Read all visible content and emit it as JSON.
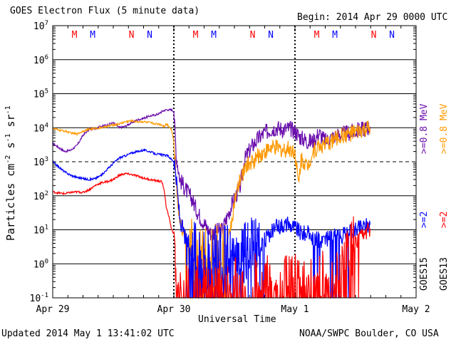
{
  "header": {
    "title": "GOES Electron Flux (5 minute data)",
    "begin": "Begin: 2014 Apr 29 0000 UTC"
  },
  "footer": {
    "updated": "Updated 2014 May  1 13:41:02 UTC",
    "credit": "NOAA/SWPC Boulder, CO USA"
  },
  "legend": {
    "goes15_label": "GOES15",
    "goes13_label": "GOES13",
    "goes15_08": ">=0.8 MeV",
    "goes13_08": ">=0.8 MeV",
    "goes15_2": ">=2",
    "goes13_2": ">=2"
  },
  "colors": {
    "goes15_08": "#6a0dad",
    "goes13_08": "#ff9900",
    "goes15_2": "#0000ff",
    "goes13_2": "#ff0000"
  },
  "chart_data": {
    "type": "line",
    "title": "GOES Electron Flux (5 minute data)",
    "xlabel": "Universal Time",
    "ylabel": "Particles cm-2 s-1 sr-1",
    "yscale": "log",
    "ylim": [
      0.1,
      10000000
    ],
    "xlim_days": [
      0,
      3
    ],
    "x_tick_labels": [
      "Apr 29",
      "Apr 30",
      "May 1",
      "May 2"
    ],
    "y_tick_labels": [
      "10-1",
      "100",
      "101",
      "102",
      "103",
      "104",
      "105",
      "106",
      "107"
    ],
    "threshold_line": 1000,
    "day_separators_days": [
      1,
      2
    ],
    "magnetopause_markers": [
      {
        "label": "M",
        "day": 0.18,
        "color": "#ff0000"
      },
      {
        "label": "M",
        "day": 0.33,
        "color": "#0000ff"
      },
      {
        "label": "N",
        "day": 0.65,
        "color": "#ff0000"
      },
      {
        "label": "N",
        "day": 0.8,
        "color": "#0000ff"
      },
      {
        "label": "M",
        "day": 1.18,
        "color": "#ff0000"
      },
      {
        "label": "M",
        "day": 1.33,
        "color": "#0000ff"
      },
      {
        "label": "N",
        "day": 1.65,
        "color": "#ff0000"
      },
      {
        "label": "N",
        "day": 1.8,
        "color": "#0000ff"
      },
      {
        "label": "M",
        "day": 2.18,
        "color": "#ff0000"
      },
      {
        "label": "M",
        "day": 2.33,
        "color": "#0000ff"
      },
      {
        "label": "N",
        "day": 2.65,
        "color": "#ff0000"
      },
      {
        "label": "N",
        "day": 2.8,
        "color": "#0000ff"
      }
    ],
    "series": [
      {
        "name": "GOES15 >=0.8 MeV",
        "color": "#6a0dad",
        "noise_after_day": 1.0,
        "x": [
          0.0,
          0.05,
          0.1,
          0.15,
          0.2,
          0.25,
          0.3,
          0.35,
          0.4,
          0.45,
          0.5,
          0.55,
          0.6,
          0.65,
          0.7,
          0.75,
          0.8,
          0.85,
          0.88,
          0.9,
          0.92,
          0.94,
          0.96,
          0.98,
          1.0,
          1.02,
          1.05,
          1.1,
          1.15,
          1.2,
          1.3,
          1.4,
          1.45,
          1.5,
          1.55,
          1.58,
          1.6,
          1.65,
          1.7,
          1.75,
          1.8,
          1.85,
          1.9,
          1.95,
          2.0,
          2.03,
          2.05,
          2.08,
          2.1,
          2.15,
          2.2,
          2.25,
          2.3,
          2.35,
          2.4,
          2.45,
          2.5,
          2.55,
          2.6,
          2.62
        ],
        "y": [
          3500,
          2600,
          2000,
          2200,
          3000,
          6000,
          9000,
          9500,
          11000,
          12000,
          14000,
          10000,
          11000,
          14000,
          17000,
          19000,
          22000,
          24000,
          26000,
          30000,
          32000,
          34000,
          33000,
          34000,
          30000,
          1500,
          300,
          150,
          80,
          30,
          8,
          10,
          30,
          80,
          200,
          1000,
          1500,
          3000,
          5000,
          7000,
          9000,
          10000,
          9000,
          9500,
          8000,
          6000,
          5000,
          4500,
          4000,
          4000,
          7000,
          4000,
          5000,
          6000,
          6500,
          7000,
          8000,
          9000,
          10000,
          10500
        ]
      },
      {
        "name": "GOES13 >=0.8 MeV",
        "color": "#ff9900",
        "noise_after_day": 1.0,
        "x": [
          0.0,
          0.05,
          0.1,
          0.15,
          0.2,
          0.25,
          0.3,
          0.35,
          0.4,
          0.45,
          0.5,
          0.55,
          0.6,
          0.65,
          0.7,
          0.75,
          0.8,
          0.85,
          0.88,
          0.9,
          0.92,
          0.94,
          0.96,
          0.98,
          1.0,
          1.02,
          1.05,
          1.1,
          1.15,
          1.2,
          1.3,
          1.4,
          1.45,
          1.5,
          1.55,
          1.6,
          1.65,
          1.7,
          1.75,
          1.8,
          1.85,
          1.9,
          1.95,
          2.0,
          2.03,
          2.05,
          2.08,
          2.1,
          2.15,
          2.2,
          2.25,
          2.3,
          2.35,
          2.4,
          2.45,
          2.5,
          2.55,
          2.6,
          2.62
        ],
        "y": [
          9500,
          8500,
          8000,
          7000,
          6500,
          8000,
          9000,
          9500,
          10000,
          11000,
          12000,
          13000,
          15000,
          16000,
          15000,
          15000,
          14000,
          13000,
          13000,
          12000,
          11000,
          13000,
          11000,
          9000,
          4000,
          200,
          20,
          5,
          2,
          2,
          1.5,
          1.5,
          5,
          60,
          300,
          800,
          1000,
          1500,
          2000,
          2500,
          2500,
          2200,
          2500,
          2000,
          200,
          1200,
          1000,
          700,
          2000,
          3000,
          3000,
          4000,
          5000,
          6000,
          6500,
          7000,
          8000,
          9000,
          9500
        ]
      },
      {
        "name": "GOES15 >=2 MeV",
        "color": "#0000ff",
        "noise_after_day": 1.0,
        "x": [
          0.0,
          0.05,
          0.1,
          0.15,
          0.2,
          0.25,
          0.3,
          0.35,
          0.4,
          0.45,
          0.5,
          0.55,
          0.6,
          0.65,
          0.7,
          0.75,
          0.8,
          0.85,
          0.9,
          0.95,
          1.0,
          1.02,
          1.05,
          1.1,
          1.2,
          1.3,
          1.4,
          1.5,
          1.6,
          1.7,
          1.8,
          1.85,
          1.9,
          1.95,
          2.0,
          2.05,
          2.1,
          2.15,
          2.2,
          2.25,
          2.3,
          2.35,
          2.4,
          2.45,
          2.5,
          2.55,
          2.6,
          2.62
        ],
        "y": [
          1000,
          700,
          500,
          400,
          350,
          320,
          300,
          320,
          400,
          600,
          900,
          1300,
          1500,
          1800,
          2000,
          2200,
          2000,
          1700,
          1600,
          1500,
          1000,
          300,
          20,
          5,
          2,
          1.5,
          1.5,
          1.5,
          2,
          3,
          8,
          12,
          15,
          14,
          12,
          8,
          8,
          6,
          5,
          5,
          6,
          6,
          7,
          8,
          10,
          12,
          14,
          14
        ]
      },
      {
        "name": "GOES13 >=2 MeV",
        "color": "#ff0000",
        "noise_after_day": 1.0,
        "x": [
          0.0,
          0.05,
          0.1,
          0.15,
          0.2,
          0.25,
          0.3,
          0.35,
          0.4,
          0.45,
          0.5,
          0.55,
          0.6,
          0.65,
          0.7,
          0.75,
          0.8,
          0.85,
          0.9,
          0.92,
          0.94,
          0.96,
          0.98,
          1.0,
          1.02,
          1.05,
          1.1,
          1.2,
          1.3,
          1.4,
          1.5,
          1.6,
          1.7,
          1.8,
          1.9,
          2.0,
          2.05,
          2.1,
          2.15,
          2.2,
          2.25,
          2.3,
          2.35,
          2.4,
          2.45,
          2.5,
          2.55,
          2.6,
          2.62
        ],
        "y": [
          130,
          120,
          115,
          125,
          130,
          125,
          150,
          200,
          240,
          260,
          300,
          400,
          450,
          420,
          380,
          330,
          300,
          280,
          260,
          150,
          40,
          25,
          10,
          8,
          0.8,
          0.3,
          0.2,
          0.2,
          0.2,
          0.2,
          0.2,
          0.2,
          0.2,
          0.2,
          0.2,
          0.2,
          0.2,
          0.2,
          0.2,
          0.2,
          0.3,
          0.5,
          0.8,
          1,
          2,
          4,
          6,
          9,
          11
        ]
      }
    ]
  }
}
